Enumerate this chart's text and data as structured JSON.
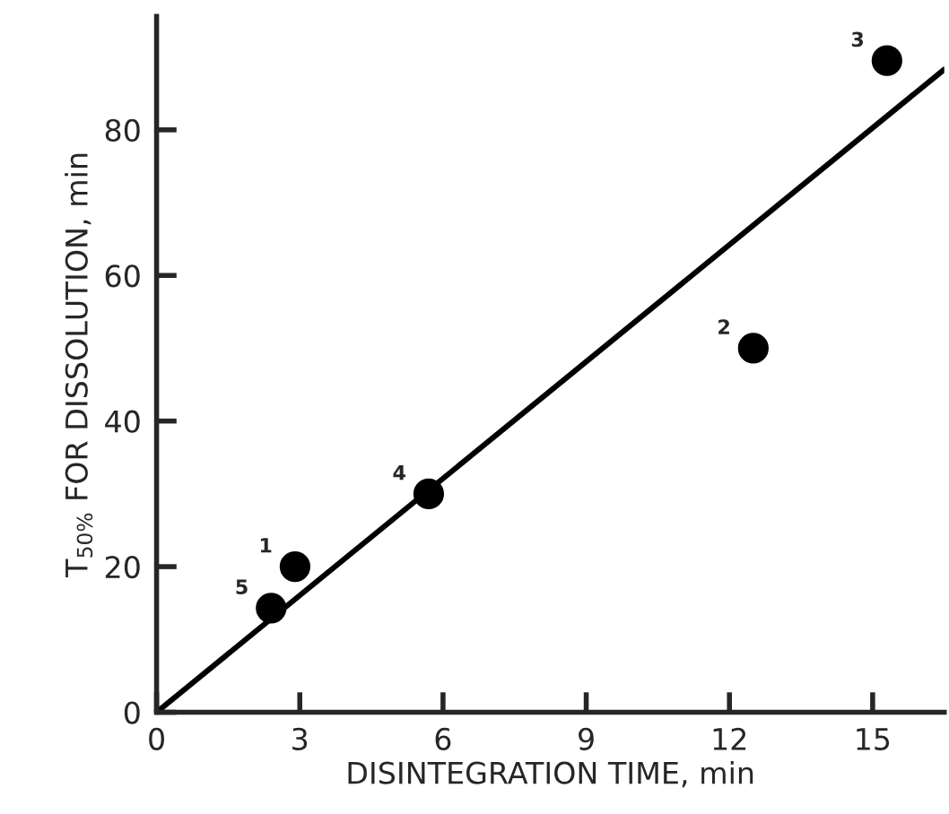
{
  "chart_data": {
    "type": "scatter",
    "xlabel": "DISINTEGRATION TIME, min",
    "ylabel": "T$_{50%}$ FOR DISSOLUTION, min",
    "series": [
      {
        "color": "#000000",
        "marker": "circle",
        "x": [
          2.9,
          12.5,
          15.3,
          5.7,
          2.4
        ],
        "values": [
          20,
          50,
          89.5,
          30,
          14.3
        ]
      },
      {
        "type": "line",
        "color": "#000000",
        "marker": "none",
        "line_style": "solid",
        "x": [
          0,
          16.5
        ],
        "values": [
          0,
          88.3
        ]
      }
    ],
    "annotations": [
      {
        "text": "1",
        "x": 2.9,
        "y": 20
      },
      {
        "text": "2",
        "x": 12.5,
        "y": 50
      },
      {
        "text": "3",
        "x": 15.3,
        "y": 89.5
      },
      {
        "text": "4",
        "x": 5.7,
        "y": 30
      },
      {
        "text": "5",
        "x": 2.4,
        "y": 14.3
      }
    ],
    "xlim": [
      0,
      16.5
    ],
    "ylim": [
      0,
      95.6
    ],
    "xticks": [
      0,
      3,
      6,
      9,
      12,
      15
    ],
    "yticks": [
      0,
      20,
      40,
      60,
      80
    ],
    "grid": false,
    "legend": false
  }
}
